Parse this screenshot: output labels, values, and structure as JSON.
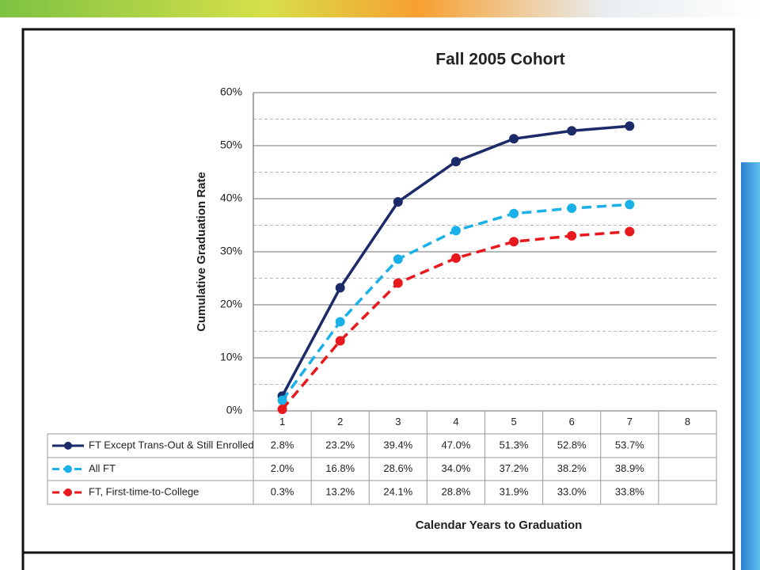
{
  "chart_data": {
    "type": "line",
    "title": "Fall 2005 Cohort",
    "y_label": "Cumulative Graduation Rate",
    "x_label": "Calendar Years to Graduation",
    "categories": [
      "1",
      "2",
      "3",
      "4",
      "5",
      "6",
      "7",
      "8"
    ],
    "ylim": [
      0,
      60
    ],
    "yticks": [
      {
        "value": 0,
        "label": "0%"
      },
      {
        "value": 10,
        "label": "10%"
      },
      {
        "value": 20,
        "label": "20%"
      },
      {
        "value": 30,
        "label": "30%"
      },
      {
        "value": 40,
        "label": "40%"
      },
      {
        "value": 50,
        "label": "50%"
      },
      {
        "value": 60,
        "label": "60%"
      }
    ],
    "grid": true,
    "series": [
      {
        "name": "FT Except Trans-Out & Still Enrolled",
        "color": "#1b2a68",
        "dashed": false,
        "values": [
          2.8,
          23.2,
          39.4,
          47.0,
          51.3,
          52.8,
          53.7,
          null
        ],
        "value_labels": [
          "2.8%",
          "23.2%",
          "39.4%",
          "47.0%",
          "51.3%",
          "52.8%",
          "53.7%",
          null
        ]
      },
      {
        "name": "All FT",
        "color": "#1ab0e8",
        "dashed": true,
        "values": [
          2.0,
          16.8,
          28.6,
          34.0,
          37.2,
          38.2,
          38.9,
          null
        ],
        "value_labels": [
          "2.0%",
          "16.8%",
          "28.6%",
          "34.0%",
          "37.2%",
          "38.2%",
          "38.9%",
          null
        ]
      },
      {
        "name": "FT, First-time-to-College",
        "color": "#e8191e",
        "dashed": true,
        "values": [
          0.3,
          13.2,
          24.1,
          28.8,
          31.9,
          33.0,
          33.8,
          null
        ],
        "value_labels": [
          "0.3%",
          "13.2%",
          "24.1%",
          "28.8%",
          "31.9%",
          "33.0%",
          "33.8%",
          null
        ]
      }
    ]
  }
}
